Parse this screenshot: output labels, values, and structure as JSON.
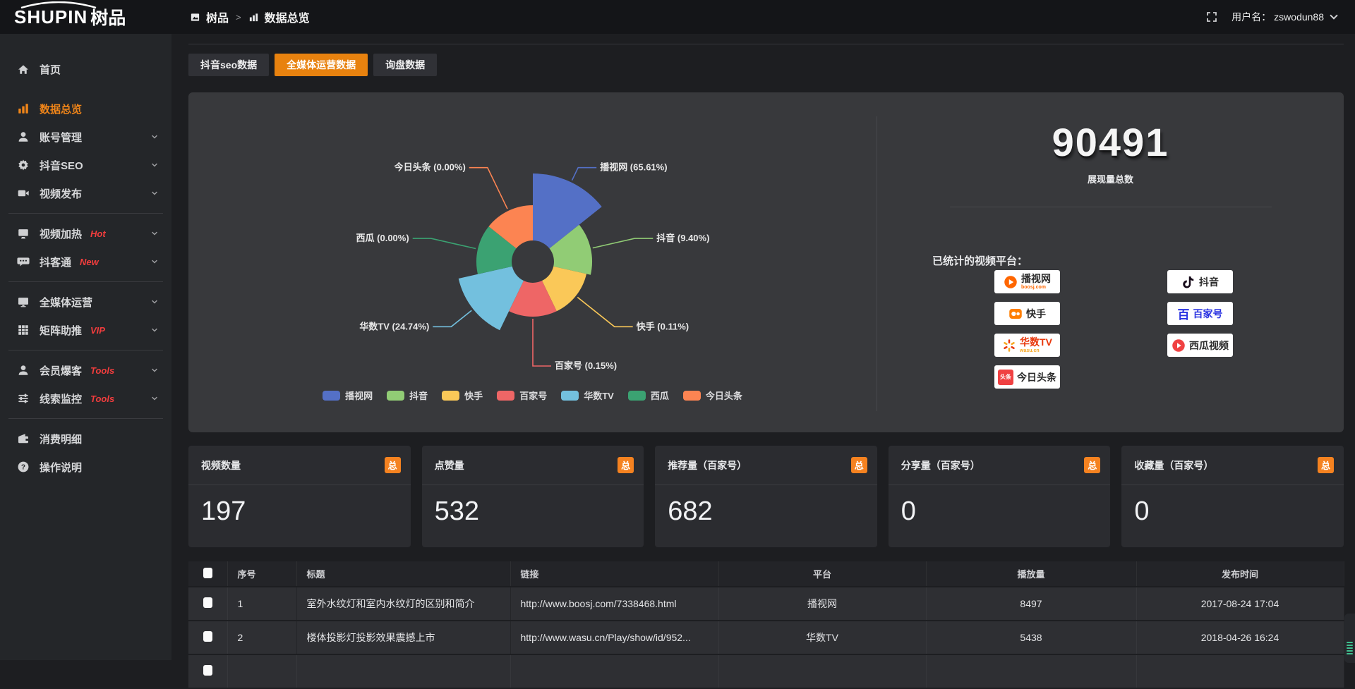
{
  "topbar": {
    "logo_text": "SHUPIN",
    "logo_suffix": "树品",
    "breadcrumb": {
      "root": "树品",
      "separator": ">",
      "current": "数据总览"
    },
    "user": {
      "label": "用户名：",
      "name": "zswodun88"
    }
  },
  "sidebar": {
    "items": [
      {
        "id": "home",
        "label": "首页",
        "icon": "home"
      },
      {
        "id": "data-overview",
        "label": "数据总览",
        "icon": "chart",
        "active": true,
        "gap": true
      },
      {
        "id": "account-manage",
        "label": "账号管理",
        "icon": "user",
        "chevron": true
      },
      {
        "id": "douyin-seo",
        "label": "抖音SEO",
        "icon": "gear",
        "chevron": true
      },
      {
        "id": "video-publish",
        "label": "视频发布",
        "icon": "video",
        "chevron": true
      },
      {
        "divider": true
      },
      {
        "id": "video-heat",
        "label": "视频加热",
        "icon": "screen",
        "tag": "Hot",
        "chevron": true
      },
      {
        "id": "douketong",
        "label": "抖客通",
        "icon": "chat",
        "tag": "New",
        "chevron": true
      },
      {
        "divider": true
      },
      {
        "id": "media-ops",
        "label": "全媒体运营",
        "icon": "monitor",
        "chevron": true
      },
      {
        "id": "matrix-boost",
        "label": "矩阵助推",
        "icon": "grid",
        "tag": "VIP",
        "chevron": true
      },
      {
        "divider": true
      },
      {
        "id": "member-burst",
        "label": "会员爆客",
        "icon": "user",
        "tag": "Tools",
        "chevron": true
      },
      {
        "id": "lead-monitor",
        "label": "线索监控",
        "icon": "sliders",
        "tag": "Tools",
        "chevron": true
      },
      {
        "divider": true
      },
      {
        "id": "expense-detail",
        "label": "消费明细",
        "icon": "wallet"
      },
      {
        "id": "help",
        "label": "操作说明",
        "icon": "question"
      }
    ]
  },
  "tabs": [
    {
      "label": "抖音seo数据",
      "active": false
    },
    {
      "label": "全媒体运营数据",
      "active": true
    },
    {
      "label": "询盘数据",
      "active": false
    }
  ],
  "chart_data": {
    "type": "pie",
    "variant": "nightingale-rose",
    "unit": "%",
    "inner_radius": 30,
    "legend_position": "bottom",
    "items": [
      {
        "name": "播视网",
        "value": 65.61,
        "color": "#5470c6",
        "radius": 125
      },
      {
        "name": "抖音",
        "value": 9.4,
        "color": "#91cc75",
        "radius": 84
      },
      {
        "name": "快手",
        "value": 0.11,
        "color": "#fac858",
        "radius": 78
      },
      {
        "name": "百家号",
        "value": 0.15,
        "color": "#ee6666",
        "radius": 78
      },
      {
        "name": "华数TV",
        "value": 24.74,
        "color": "#73c0de",
        "radius": 108
      },
      {
        "name": "西瓜",
        "value": 0.0,
        "color": "#3ba272",
        "radius": 80
      },
      {
        "name": "今日头条",
        "value": 0.0,
        "color": "#fc8452",
        "radius": 80
      }
    ]
  },
  "summary": {
    "total": "90491",
    "total_label": "展现量总数",
    "platforms_title": "已统计的视频平台：",
    "badges": [
      {
        "name": "播视网",
        "sub": "boosj.com",
        "style": "boosj"
      },
      {
        "name": "抖音",
        "style": "douyin"
      },
      {
        "name": "快手",
        "style": "kuaishou"
      },
      {
        "name": "百家号",
        "style": "baijia"
      },
      {
        "name": "华数TV",
        "sub": "wasu.cn",
        "style": "wasu"
      },
      {
        "name": "西瓜视频",
        "style": "xigua"
      },
      {
        "name": "今日头条",
        "logo_text": "头条",
        "style": "toutiao"
      }
    ]
  },
  "stat_cards": [
    {
      "label": "视频数量",
      "badge": "总",
      "value": "197"
    },
    {
      "label": "点赞量",
      "badge": "总",
      "value": "532"
    },
    {
      "label": "推荐量（百家号）",
      "badge": "总",
      "value": "682"
    },
    {
      "label": "分享量（百家号）",
      "badge": "总",
      "value": "0"
    },
    {
      "label": "收藏量（百家号）",
      "badge": "总",
      "value": "0"
    }
  ],
  "table": {
    "headers": [
      "序号",
      "标题",
      "链接",
      "平台",
      "播放量",
      "发布时间"
    ],
    "rows": [
      {
        "num": "1",
        "title": "室外水纹灯和室内水纹灯的区别和简介",
        "link": "http://www.boosj.com/7338468.html",
        "platform": "播视网",
        "plays": "8497",
        "time": "2017-08-24 17:04"
      },
      {
        "num": "2",
        "title": "楼体投影灯投影效果震撼上市",
        "link": "http://www.wasu.cn/Play/show/id/952...",
        "platform": "华数TV",
        "plays": "5438",
        "time": "2018-04-26 16:24"
      }
    ]
  },
  "colors": {
    "accent": "#e8820f",
    "badge": "#f58220",
    "link": "#e0863a",
    "tag": "#f23d3d",
    "widget_stripe": "#3fbf8f"
  }
}
